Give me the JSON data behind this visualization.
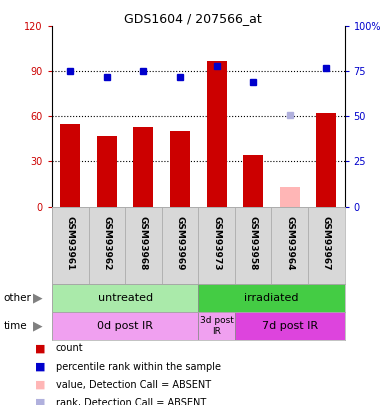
{
  "title": "GDS1604 / 207566_at",
  "samples": [
    "GSM93961",
    "GSM93962",
    "GSM93968",
    "GSM93969",
    "GSM93973",
    "GSM93958",
    "GSM93964",
    "GSM93967"
  ],
  "bar_values": [
    55,
    47,
    53,
    50,
    97,
    34,
    null,
    62
  ],
  "bar_color": "#cc0000",
  "absent_bar_values": [
    null,
    null,
    null,
    null,
    null,
    null,
    13,
    null
  ],
  "absent_bar_color": "#ffb6b6",
  "rank_values": [
    75,
    72,
    75,
    72,
    78,
    69,
    null,
    77
  ],
  "rank_color": "#0000cc",
  "absent_rank_values": [
    null,
    null,
    null,
    null,
    null,
    null,
    51,
    null
  ],
  "absent_rank_color": "#b0b0dd",
  "ylim_left": [
    0,
    120
  ],
  "ylim_right": [
    0,
    100
  ],
  "yticks_left": [
    0,
    30,
    60,
    90,
    120
  ],
  "ytick_labels_left": [
    "0",
    "30",
    "60",
    "90",
    "120"
  ],
  "yticks_right": [
    0,
    25,
    50,
    75,
    100
  ],
  "ytick_labels_right": [
    "0",
    "25",
    "50",
    "75",
    "100%"
  ],
  "hlines": [
    30,
    60,
    90
  ],
  "group_other": [
    {
      "label": "untreated",
      "start": 0,
      "end": 4,
      "color": "#aaeaaa"
    },
    {
      "label": "irradiated",
      "start": 4,
      "end": 8,
      "color": "#44cc44"
    }
  ],
  "group_time": [
    {
      "label": "0d post IR",
      "start": 0,
      "end": 4,
      "color": "#f0a0f0"
    },
    {
      "label": "3d post\nIR",
      "start": 4,
      "end": 5,
      "color": "#f0a0f0"
    },
    {
      "label": "7d post IR",
      "start": 5,
      "end": 8,
      "color": "#dd44dd"
    }
  ],
  "legend_items": [
    {
      "label": "count",
      "color": "#cc0000"
    },
    {
      "label": "percentile rank within the sample",
      "color": "#0000cc"
    },
    {
      "label": "value, Detection Call = ABSENT",
      "color": "#ffb6b6"
    },
    {
      "label": "rank, Detection Call = ABSENT",
      "color": "#b0b0dd"
    }
  ],
  "left_tick_color": "#cc0000",
  "right_tick_color": "#0000cc",
  "sample_box_color": "#d8d8d8",
  "sample_border_color": "#aaaaaa",
  "bar_width": 0.55
}
